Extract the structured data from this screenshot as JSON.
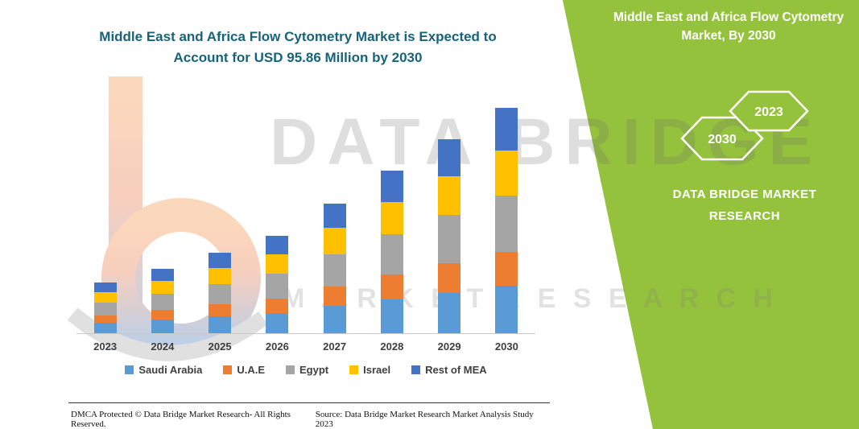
{
  "title": {
    "line1": "Middle East and Africa Flow Cytometry Market is Expected to",
    "line2": "Account for USD 95.86 Million by 2030"
  },
  "side_panel": {
    "title_line1": "Middle East and Africa Flow Cytometry",
    "title_line2": "Market, By 2030",
    "hexagon_back_year": "2030",
    "hexagon_front_year": "2023",
    "brand_line1": "DATA BRIDGE MARKET",
    "brand_line2": "RESEARCH"
  },
  "watermark": {
    "text_top": "DATA BRIDGE",
    "text_bottom": "M A R K E T   R E S E A R C H",
    "logo": "data-bridge-b-logo"
  },
  "footer": {
    "left": "DMCA Protected © Data Bridge Market Research-  All Rights Reserved.",
    "right": "Source: Data Bridge Market Research  Market Analysis Study 2023"
  },
  "colors": {
    "panel_green": "#95C23D",
    "title_teal": "#17637B"
  },
  "chart_data": {
    "type": "bar",
    "stacked": true,
    "title": "Middle East and Africa Flow Cytometry Market is Expected to Account for USD 95.86 Million by 2030",
    "unit": "USD Million",
    "categories": [
      "2023",
      "2024",
      "2025",
      "2026",
      "2027",
      "2028",
      "2029",
      "2030"
    ],
    "series": [
      {
        "name": "Saudi Arabia",
        "color": "#5B9BD5",
        "values": [
          4.5,
          5.7,
          7.2,
          8.7,
          11.6,
          14.5,
          17.3,
          20.1
        ]
      },
      {
        "name": "U.A.E",
        "color": "#ED7D31",
        "values": [
          3.2,
          4.1,
          5.2,
          6.2,
          8.3,
          10.4,
          12.4,
          14.4
        ]
      },
      {
        "name": "Egypt",
        "color": "#A5A5A5",
        "values": [
          5.4,
          6.9,
          8.6,
          10.4,
          13.8,
          17.3,
          20.6,
          24.0
        ]
      },
      {
        "name": "Israel",
        "color": "#FFC000",
        "values": [
          4.3,
          5.5,
          6.9,
          8.3,
          11.1,
          13.8,
          16.5,
          19.2
        ]
      },
      {
        "name": "Rest of MEA",
        "color": "#4472C4",
        "values": [
          4.2,
          5.3,
          6.5,
          8.0,
          10.5,
          13.1,
          15.7,
          18.2
        ]
      }
    ],
    "total_2030": 95.86,
    "grid": false,
    "legend_position": "bottom",
    "x_axis_labels_bold": true
  }
}
